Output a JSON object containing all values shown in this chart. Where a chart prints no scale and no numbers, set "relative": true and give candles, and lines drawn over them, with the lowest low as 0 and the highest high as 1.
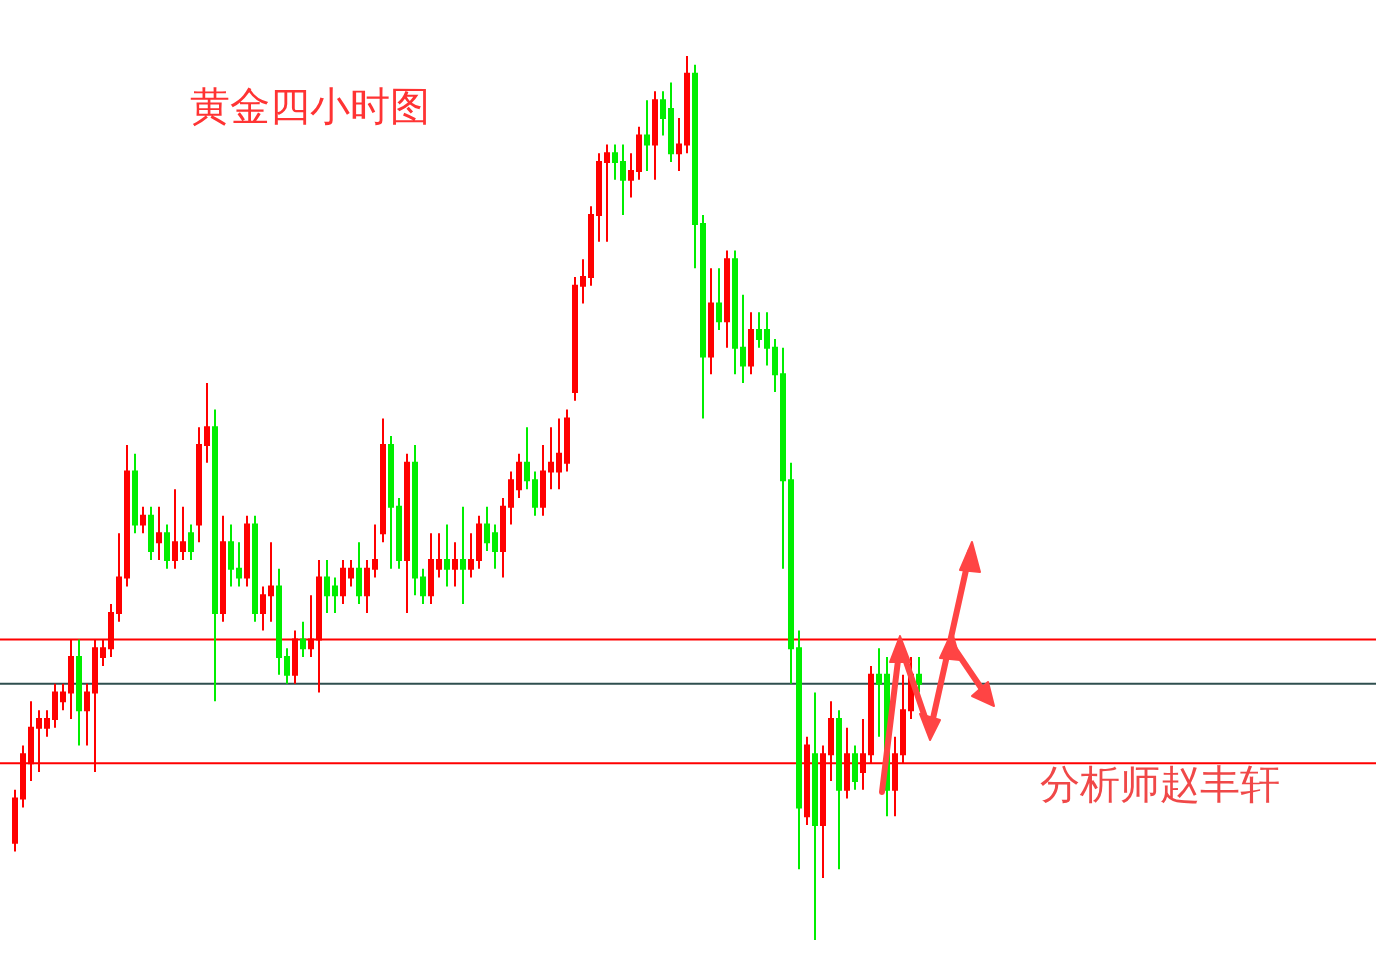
{
  "chart_data": {
    "type": "candlestick",
    "title": "黄金四小时图",
    "annotations": [
      "分析师赵丰轩"
    ],
    "relative": true,
    "categories": [
      null,
      null,
      null,
      null,
      null,
      null,
      null,
      null,
      null,
      null,
      null,
      null,
      null,
      null,
      null,
      null,
      null,
      null,
      null,
      null,
      null,
      null,
      null,
      null,
      null,
      null,
      null,
      null,
      null,
      null,
      null,
      null,
      null,
      null,
      null,
      null,
      null,
      null,
      null,
      null,
      null,
      null,
      null,
      null,
      null,
      null,
      null,
      null,
      null,
      null,
      null,
      null,
      null,
      null,
      null,
      null,
      null,
      null,
      null,
      null,
      null,
      null,
      null,
      null,
      null,
      null,
      null,
      null,
      null,
      null,
      null,
      null,
      null,
      null,
      null,
      null,
      null,
      null,
      null,
      null,
      null,
      null,
      null,
      null,
      null,
      null,
      null,
      null,
      null,
      null,
      null,
      null,
      null,
      null,
      null,
      null,
      null,
      null,
      null,
      null,
      null,
      null,
      null,
      null,
      null,
      null,
      null,
      null,
      null,
      null,
      null,
      null,
      null,
      null
    ],
    "ohlc": [
      [
        0.11,
        0.17,
        0.1,
        0.16
      ],
      [
        0.16,
        0.22,
        0.15,
        0.21
      ],
      [
        0.2,
        0.27,
        0.18,
        0.24
      ],
      [
        0.24,
        0.26,
        0.19,
        0.25
      ],
      [
        0.24,
        0.26,
        0.23,
        0.25
      ],
      [
        0.25,
        0.29,
        0.24,
        0.28
      ],
      [
        0.27,
        0.29,
        0.26,
        0.28
      ],
      [
        0.28,
        0.34,
        0.25,
        0.32
      ],
      [
        0.32,
        0.34,
        0.22,
        0.26
      ],
      [
        0.26,
        0.29,
        0.22,
        0.28
      ],
      [
        0.28,
        0.34,
        0.19,
        0.33
      ],
      [
        0.32,
        0.34,
        0.31,
        0.33
      ],
      [
        0.33,
        0.38,
        0.32,
        0.37
      ],
      [
        0.37,
        0.46,
        0.36,
        0.41
      ],
      [
        0.41,
        0.56,
        0.4,
        0.53
      ],
      [
        0.53,
        0.55,
        0.46,
        0.47
      ],
      [
        0.47,
        0.49,
        0.46,
        0.48
      ],
      [
        0.48,
        0.49,
        0.43,
        0.44
      ],
      [
        0.45,
        0.49,
        0.43,
        0.46
      ],
      [
        0.46,
        0.47,
        0.42,
        0.43
      ],
      [
        0.43,
        0.51,
        0.42,
        0.45
      ],
      [
        0.44,
        0.49,
        0.43,
        0.45
      ],
      [
        0.46,
        0.47,
        0.43,
        0.44
      ],
      [
        0.47,
        0.58,
        0.45,
        0.56
      ],
      [
        0.56,
        0.63,
        0.54,
        0.58
      ],
      [
        0.58,
        0.6,
        0.27,
        0.37
      ],
      [
        0.37,
        0.48,
        0.36,
        0.45
      ],
      [
        0.45,
        0.47,
        0.4,
        0.42
      ],
      [
        0.42,
        0.45,
        0.4,
        0.41
      ],
      [
        0.41,
        0.48,
        0.4,
        0.47
      ],
      [
        0.47,
        0.48,
        0.36,
        0.37
      ],
      [
        0.37,
        0.4,
        0.35,
        0.39
      ],
      [
        0.39,
        0.45,
        0.36,
        0.4
      ],
      [
        0.4,
        0.42,
        0.3,
        0.32
      ],
      [
        0.32,
        0.33,
        0.29,
        0.3
      ],
      [
        0.3,
        0.35,
        0.29,
        0.34
      ],
      [
        0.34,
        0.36,
        0.32,
        0.33
      ],
      [
        0.33,
        0.39,
        0.32,
        0.34
      ],
      [
        0.34,
        0.43,
        0.28,
        0.41
      ],
      [
        0.41,
        0.43,
        0.37,
        0.39
      ],
      [
        0.4,
        0.41,
        0.37,
        0.39
      ],
      [
        0.39,
        0.43,
        0.38,
        0.42
      ],
      [
        0.41,
        0.43,
        0.4,
        0.42
      ],
      [
        0.42,
        0.45,
        0.38,
        0.39
      ],
      [
        0.39,
        0.43,
        0.37,
        0.42
      ],
      [
        0.42,
        0.47,
        0.41,
        0.43
      ],
      [
        0.46,
        0.59,
        0.45,
        0.56
      ],
      [
        0.56,
        0.57,
        0.42,
        0.49
      ],
      [
        0.49,
        0.5,
        0.42,
        0.43
      ],
      [
        0.43,
        0.55,
        0.37,
        0.54
      ],
      [
        0.54,
        0.56,
        0.39,
        0.41
      ],
      [
        0.41,
        0.42,
        0.38,
        0.39
      ],
      [
        0.39,
        0.46,
        0.38,
        0.43
      ],
      [
        0.42,
        0.46,
        0.41,
        0.43
      ],
      [
        0.43,
        0.47,
        0.4,
        0.42
      ],
      [
        0.42,
        0.45,
        0.4,
        0.43
      ],
      [
        0.43,
        0.49,
        0.38,
        0.42
      ],
      [
        0.42,
        0.46,
        0.41,
        0.43
      ],
      [
        0.43,
        0.48,
        0.42,
        0.47
      ],
      [
        0.47,
        0.49,
        0.44,
        0.45
      ],
      [
        0.46,
        0.47,
        0.42,
        0.44
      ],
      [
        0.44,
        0.5,
        0.41,
        0.49
      ],
      [
        0.49,
        0.53,
        0.47,
        0.52
      ],
      [
        0.51,
        0.55,
        0.5,
        0.54
      ],
      [
        0.54,
        0.58,
        0.51,
        0.52
      ],
      [
        0.52,
        0.53,
        0.48,
        0.49
      ],
      [
        0.49,
        0.56,
        0.48,
        0.53
      ],
      [
        0.53,
        0.58,
        0.51,
        0.54
      ],
      [
        0.53,
        0.59,
        0.51,
        0.55
      ],
      [
        0.54,
        0.6,
        0.53,
        0.59
      ],
      [
        0.62,
        0.75,
        0.61,
        0.74
      ],
      [
        0.74,
        0.77,
        0.72,
        0.75
      ],
      [
        0.75,
        0.83,
        0.74,
        0.82
      ],
      [
        0.82,
        0.89,
        0.79,
        0.88
      ],
      [
        0.88,
        0.9,
        0.79,
        0.89
      ],
      [
        0.89,
        0.9,
        0.86,
        0.88
      ],
      [
        0.88,
        0.9,
        0.82,
        0.86
      ],
      [
        0.86,
        0.89,
        0.84,
        0.87
      ],
      [
        0.87,
        0.92,
        0.86,
        0.91
      ],
      [
        0.91,
        0.95,
        0.87,
        0.9
      ],
      [
        0.9,
        0.96,
        0.86,
        0.95
      ],
      [
        0.95,
        0.96,
        0.91,
        0.93
      ],
      [
        0.94,
        0.97,
        0.88,
        0.89
      ],
      [
        0.89,
        0.93,
        0.87,
        0.9
      ],
      [
        0.9,
        1,
        0.89,
        0.98
      ],
      [
        0.98,
        0.99,
        0.76,
        0.81
      ],
      [
        0.81,
        0.82,
        0.59,
        0.66
      ],
      [
        0.66,
        0.76,
        0.64,
        0.72
      ],
      [
        0.72,
        0.76,
        0.69,
        0.7
      ],
      [
        0.7,
        0.78,
        0.67,
        0.77
      ],
      [
        0.77,
        0.78,
        0.64,
        0.67
      ],
      [
        0.67,
        0.73,
        0.63,
        0.65
      ],
      [
        0.65,
        0.71,
        0.64,
        0.69
      ],
      [
        0.69,
        0.71,
        0.67,
        0.68
      ],
      [
        0.69,
        0.71,
        0.65,
        0.67
      ],
      [
        0.67,
        0.68,
        0.62,
        0.64
      ],
      [
        0.64,
        0.67,
        0.42,
        0.52
      ],
      [
        0.52,
        0.54,
        0.29,
        0.33
      ],
      [
        0.33,
        0.35,
        0.08,
        0.15
      ],
      [
        0.14,
        0.23,
        0.13,
        0.22
      ],
      [
        0.21,
        0.28,
        0,
        0.13
      ],
      [
        0.13,
        0.22,
        0.07,
        0.21
      ],
      [
        0.21,
        0.27,
        0.18,
        0.25
      ],
      [
        0.25,
        0.26,
        0.08,
        0.17
      ],
      [
        0.17,
        0.24,
        0.16,
        0.21
      ],
      [
        0.21,
        0.22,
        0.17,
        0.18
      ],
      [
        0.19,
        0.25,
        0.17,
        0.21
      ],
      [
        0.21,
        0.31,
        0.2,
        0.3
      ],
      [
        0.3,
        0.33,
        0.23,
        0.29
      ],
      [
        0.3,
        0.32,
        0.14,
        0.17
      ],
      [
        0.17,
        0.23,
        0.14,
        0.21
      ],
      [
        0.21,
        0.3,
        0.2,
        0.26
      ],
      [
        0.26,
        0.32,
        0.25,
        0.3
      ],
      [
        0.3,
        0.32,
        0.28,
        0.29
      ]
    ],
    "colors": [
      "#ff0000",
      "#ff0000",
      "#ff0000",
      "#ff0000",
      "#ff0000",
      "#ff0000",
      "#ff0000",
      "#ff0000",
      "#00ee00",
      "#ff0000",
      "#ff0000",
      "#ff0000",
      "#ff0000",
      "#ff0000",
      "#ff0000",
      "#00ee00",
      "#ff0000",
      "#00ee00",
      "#ff0000",
      "#00ee00",
      "#ff0000",
      "#ff0000",
      "#00ee00",
      "#ff0000",
      "#ff0000",
      "#00ee00",
      "#ff0000",
      "#00ee00",
      "#00ee00",
      "#ff0000",
      "#00ee00",
      "#ff0000",
      "#ff0000",
      "#00ee00",
      "#00ee00",
      "#ff0000",
      "#00ee00",
      "#ff0000",
      "#ff0000",
      "#00ee00",
      "#00ee00",
      "#ff0000",
      "#ff0000",
      "#00ee00",
      "#ff0000",
      "#ff0000",
      "#ff0000",
      "#00ee00",
      "#00ee00",
      "#ff0000",
      "#00ee00",
      "#00ee00",
      "#ff0000",
      "#ff0000",
      "#00ee00",
      "#ff0000",
      "#00ee00",
      "#ff0000",
      "#ff0000",
      "#00ee00",
      "#00ee00",
      "#ff0000",
      "#ff0000",
      "#ff0000",
      "#00ee00",
      "#00ee00",
      "#ff0000",
      "#ff0000",
      "#ff0000",
      "#ff0000",
      "#ff0000",
      "#ff0000",
      "#ff0000",
      "#ff0000",
      "#ff0000",
      "#00ee00",
      "#00ee00",
      "#ff0000",
      "#ff0000",
      "#00ee00",
      "#ff0000",
      "#00ee00",
      "#00ee00",
      "#ff0000",
      "#ff0000",
      "#00ee00",
      "#00ee00",
      "#ff0000",
      "#00ee00",
      "#ff0000",
      "#00ee00",
      "#00ee00",
      "#ff0000",
      "#00ee00",
      "#00ee00",
      "#00ee00",
      "#00ee00",
      "#00ee00",
      "#00ee00",
      "#ff0000",
      "#00ee00",
      "#ff0000",
      "#ff0000",
      "#00ee00",
      "#ff0000",
      "#00ee00",
      "#ff0000",
      "#ff0000",
      "#00ee00",
      "#00ee00",
      "#ff0000",
      "#ff0000",
      "#ff0000",
      "#00ee00"
    ],
    "ref_lines": [
      {
        "axis": "y",
        "value": 0.34,
        "color": "#ff0000"
      },
      {
        "axis": "y",
        "value": 0.29,
        "color": "#2f4f4f"
      },
      {
        "axis": "y",
        "value": 0.2,
        "color": "#ff0000"
      }
    ],
    "grid": false
  }
}
